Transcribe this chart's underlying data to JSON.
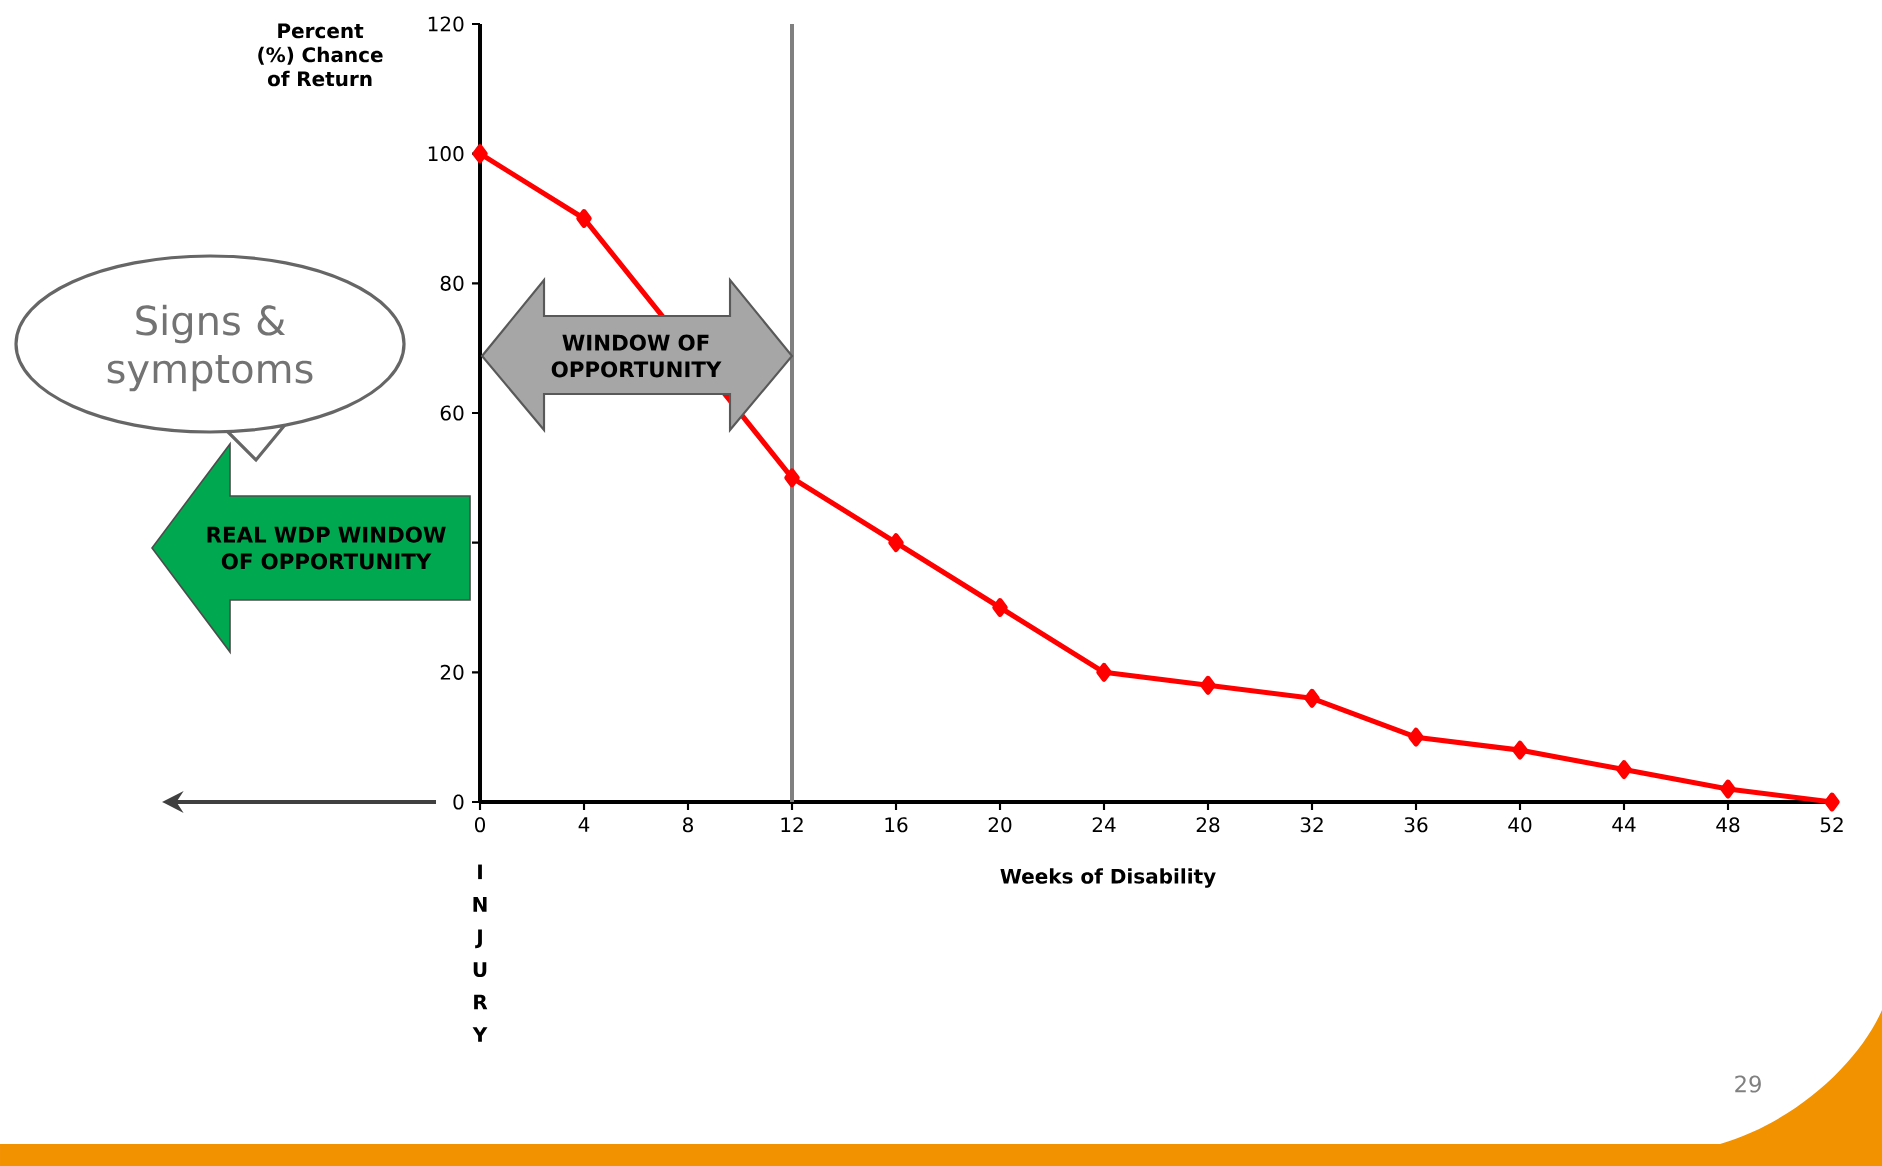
{
  "chart_data": {
    "type": "line",
    "xlabel": "Weeks of Disability",
    "ylabel": "Percent (%) Chance of Return",
    "x": [
      0,
      4,
      8,
      12,
      16,
      20,
      24,
      28,
      32,
      36,
      40,
      44,
      48,
      52
    ],
    "series": [
      {
        "color": "#ff0000",
        "values": [
          100,
          90,
          null,
          50,
          40,
          30,
          20,
          18,
          16,
          10,
          8,
          5,
          2,
          0
        ]
      }
    ],
    "marker": "diamond",
    "line_style": "solid",
    "grid": false,
    "xlim": [
      0,
      52
    ],
    "ylim": [
      0,
      120
    ],
    "xticks": [
      0,
      4,
      8,
      12,
      16,
      20,
      24,
      28,
      32,
      36,
      40,
      44,
      48,
      52
    ],
    "yticks": [
      0,
      20,
      {
        "value": 40,
        "label": null
      },
      60,
      80,
      100,
      120
    ],
    "ref_lines": [
      {
        "axis": "x",
        "value": 12,
        "color": "#808080"
      }
    ],
    "annotations": [
      "WINDOW OF OPPORTUNITY",
      "REAL WDP WINDOW OF OPPORTUNITY",
      "Signs & symptoms",
      "INJURY",
      "29"
    ]
  }
}
